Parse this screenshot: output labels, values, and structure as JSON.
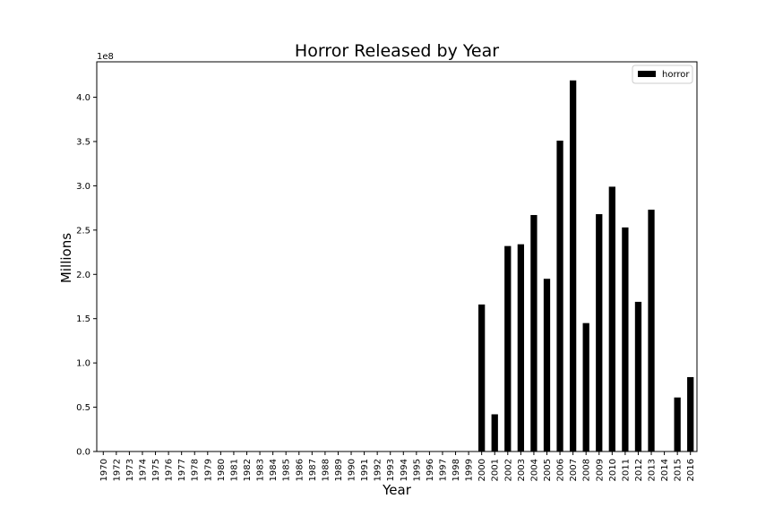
{
  "chart_data": {
    "type": "bar",
    "title": "Horror Released by Year",
    "xlabel": "Year",
    "ylabel": "Millions",
    "offset_label": "1e8",
    "ylim": [
      0,
      4.4
    ],
    "yticks": [
      "0.0",
      "0.5",
      "1.0",
      "1.5",
      "2.0",
      "2.5",
      "3.0",
      "3.5",
      "4.0"
    ],
    "legend_position": "top-right",
    "grid": false,
    "bar_color": "#000000",
    "categories": [
      "1970",
      "1972",
      "1973",
      "1974",
      "1975",
      "1976",
      "1977",
      "1978",
      "1979",
      "1980",
      "1981",
      "1982",
      "1983",
      "1984",
      "1985",
      "1986",
      "1987",
      "1988",
      "1989",
      "1990",
      "1991",
      "1992",
      "1993",
      "1994",
      "1995",
      "1996",
      "1997",
      "1998",
      "1999",
      "2000",
      "2001",
      "2002",
      "2003",
      "2004",
      "2005",
      "2006",
      "2007",
      "2008",
      "2009",
      "2010",
      "2011",
      "2012",
      "2013",
      "2014",
      "2015",
      "2016"
    ],
    "series": [
      {
        "name": "horror",
        "values": [
          0,
          0,
          0,
          0,
          0,
          0,
          0,
          0,
          0,
          0,
          0,
          0,
          0,
          0,
          0,
          0,
          0,
          0,
          0,
          0,
          0,
          0,
          0,
          0,
          0,
          0,
          0,
          0,
          0,
          1.66,
          0.42,
          2.32,
          2.34,
          2.67,
          1.95,
          3.51,
          4.19,
          1.45,
          2.68,
          2.99,
          2.53,
          1.69,
          2.73,
          0,
          0.61,
          0.84
        ]
      }
    ]
  }
}
